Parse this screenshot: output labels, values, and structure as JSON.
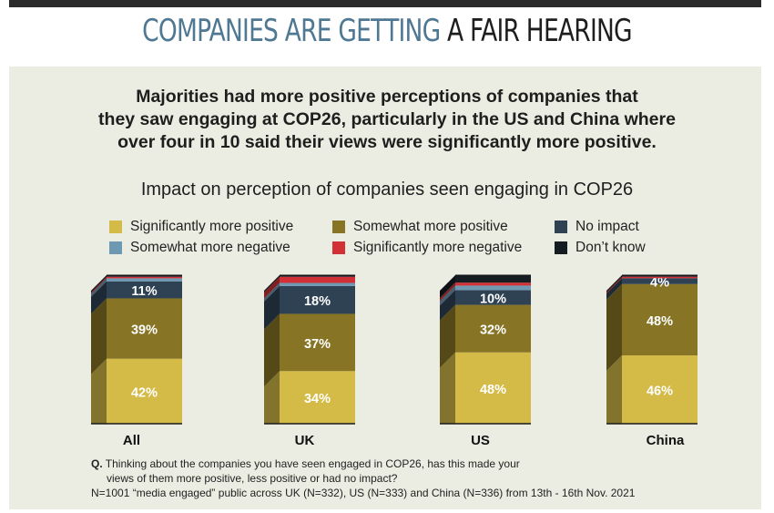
{
  "headline": {
    "part1": "COMPANIES ARE GETTING",
    "part2": "A FAIR HEARING"
  },
  "subtitle_lines": [
    "Majorities had more positive perceptions of companies that",
    "they saw engaging at COP26, particularly in the US and China where",
    "over four in 10 said their views were significantly more positive."
  ],
  "chart_data": {
    "type": "bar",
    "stacked": true,
    "title": "Impact on perception of companies seen engaging in COP26",
    "categories": [
      "All",
      "UK",
      "US",
      "China"
    ],
    "series": [
      {
        "name": "Significantly more positive",
        "color": "#d4bb48",
        "values": [
          42,
          34,
          48,
          46
        ],
        "labeled": true
      },
      {
        "name": "Somewhat more positive",
        "color": "#877525",
        "values": [
          39,
          37,
          32,
          48
        ],
        "labeled": true
      },
      {
        "name": "No impact",
        "color": "#2f4254",
        "values": [
          11,
          18,
          10,
          4
        ],
        "labeled": true
      },
      {
        "name": "Somewhat more negative",
        "color": "#6f98b3",
        "values": [
          2,
          2,
          3,
          0
        ],
        "labeled": false
      },
      {
        "name": "Significantly more negative",
        "color": "#d03036",
        "values": [
          1,
          4,
          2,
          1
        ],
        "labeled": false
      },
      {
        "name": "Don't know",
        "color": "#151c22",
        "values": [
          1,
          1,
          5,
          1
        ],
        "labeled": false
      }
    ],
    "ylim": [
      0,
      100
    ]
  },
  "legend": [
    {
      "label": "Significantly more positive",
      "color": "#d4bb48"
    },
    {
      "label": "Somewhat more positive",
      "color": "#877525"
    },
    {
      "label": "No impact",
      "color": "#2f4254"
    },
    {
      "label": "Somewhat more negative",
      "color": "#6f98b3"
    },
    {
      "label": "Significantly more negative",
      "color": "#d03036"
    },
    {
      "label": "Don’t know",
      "color": "#151c22"
    }
  ],
  "note": {
    "q_marker": "Q.",
    "q_line1": "Thinking about the companies you have seen engaged in COP26, has this made your",
    "q_line2": "views of them more positive, less positive or had no impact?",
    "sample": "N=1001 “media engaged” public across UK (N=332), US (N=333) and China (N=336) from 13th - 16th Nov. 2021"
  }
}
